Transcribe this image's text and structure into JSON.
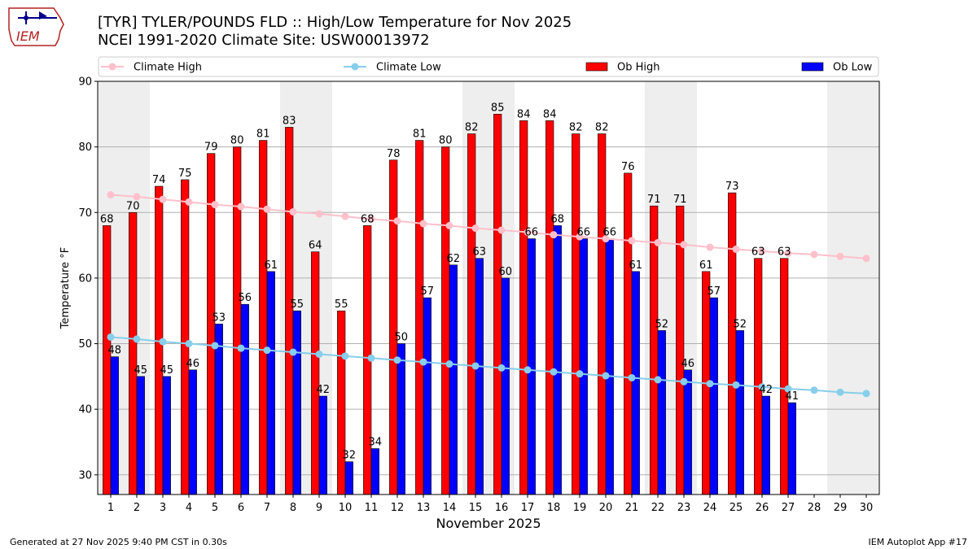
{
  "title_line1": "[TYR] TYLER/POUNDS FLD :: High/Low Temperature for Nov 2025",
  "title_line2": "NCEI 1991-2020 Climate Site: USW00013972",
  "logo_text": "IEM",
  "footer_left": "Generated at 27 Nov 2025 9:40 PM CST in 0.30s",
  "footer_right": "IEM Autoplot App #17",
  "colors": {
    "ob_high": "#ff0000",
    "ob_low": "#0000ff",
    "climate_high": "#ffc0cb",
    "climate_low": "#87ceeb",
    "weekend_shade": "#eeeeee",
    "grid": "#b0b0b0"
  },
  "chart_data": {
    "type": "bar",
    "xlabel": "November 2025",
    "ylabel": "Temperature °F",
    "ylim": [
      27,
      90
    ],
    "yticks": [
      30,
      40,
      50,
      60,
      70,
      80,
      90
    ],
    "grid": "horizontal",
    "legend_position": "top",
    "days": [
      1,
      2,
      3,
      4,
      5,
      6,
      7,
      8,
      9,
      10,
      11,
      12,
      13,
      14,
      15,
      16,
      17,
      18,
      19,
      20,
      21,
      22,
      23,
      24,
      25,
      26,
      27,
      28,
      29,
      30
    ],
    "shaded_days": [
      1,
      2,
      8,
      9,
      15,
      16,
      22,
      23,
      29,
      30
    ],
    "series": [
      {
        "name": "Climate High",
        "kind": "line",
        "values": [
          72.7,
          72.4,
          72.0,
          71.6,
          71.2,
          70.9,
          70.5,
          70.1,
          69.8,
          69.4,
          69.0,
          68.7,
          68.3,
          68.0,
          67.6,
          67.3,
          67.0,
          66.6,
          66.3,
          66.0,
          65.7,
          65.4,
          65.1,
          64.7,
          64.4,
          64.1,
          63.8,
          63.6,
          63.3,
          63.0
        ]
      },
      {
        "name": "Climate Low",
        "kind": "line",
        "values": [
          51.0,
          50.7,
          50.3,
          50.0,
          49.7,
          49.3,
          49.0,
          48.7,
          48.4,
          48.1,
          47.8,
          47.5,
          47.2,
          46.9,
          46.6,
          46.3,
          46.0,
          45.7,
          45.4,
          45.1,
          44.8,
          44.5,
          44.2,
          43.9,
          43.7,
          43.4,
          43.1,
          42.9,
          42.6,
          42.4
        ]
      },
      {
        "name": "Ob High",
        "kind": "bar",
        "values": [
          68,
          70,
          74,
          75,
          79,
          80,
          81,
          83,
          64,
          55,
          68,
          78,
          81,
          80,
          82,
          85,
          84,
          84,
          82,
          82,
          76,
          71,
          71,
          61,
          73,
          63,
          63,
          null,
          null,
          null
        ]
      },
      {
        "name": "Ob Low",
        "kind": "bar",
        "values": [
          48,
          45,
          45,
          46,
          53,
          56,
          61,
          55,
          42,
          32,
          34,
          50,
          57,
          62,
          63,
          60,
          66,
          68,
          66,
          66,
          61,
          52,
          46,
          57,
          52,
          42,
          41,
          null,
          null,
          null
        ]
      }
    ]
  }
}
